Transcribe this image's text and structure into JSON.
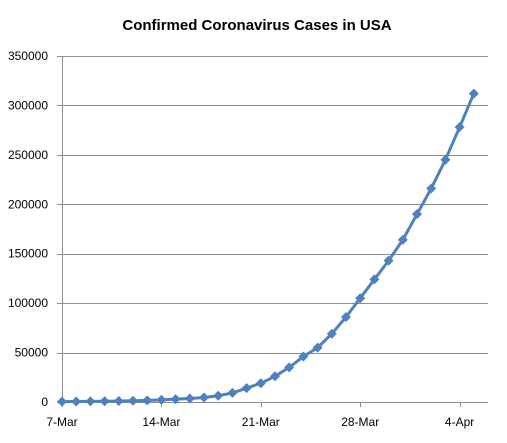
{
  "chart_data": {
    "type": "line",
    "title": "Confirmed Coronavirus Cases in USA",
    "xlabel": "",
    "ylabel": "",
    "ylim": [
      0,
      350000
    ],
    "y_ticks": [
      0,
      50000,
      100000,
      150000,
      200000,
      250000,
      300000,
      350000
    ],
    "y_tick_labels": [
      "0",
      "50000",
      "100000",
      "150000",
      "200000",
      "250000",
      "300000",
      "350000"
    ],
    "x_tick_labels": [
      "7-Mar",
      "14-Mar",
      "21-Mar",
      "28-Mar",
      "4-Apr"
    ],
    "x_tick_dates": [
      "2020-03-07",
      "2020-03-14",
      "2020-03-21",
      "2020-03-28",
      "2020-04-04"
    ],
    "xlim": [
      "2020-03-07",
      "2020-04-06"
    ],
    "grid": "horizontal",
    "legend": "none",
    "marker": "diamond",
    "color": "#4f81bd",
    "series": [
      {
        "x": [
          "2020-03-07",
          "2020-03-08",
          "2020-03-09",
          "2020-03-10",
          "2020-03-11",
          "2020-03-12",
          "2020-03-13",
          "2020-03-14",
          "2020-03-15",
          "2020-03-16",
          "2020-03-17",
          "2020-03-18",
          "2020-03-19",
          "2020-03-20",
          "2020-03-21",
          "2020-03-22",
          "2020-03-23",
          "2020-03-24",
          "2020-03-25",
          "2020-03-26",
          "2020-03-27",
          "2020-03-28",
          "2020-03-29",
          "2020-03-30",
          "2020-03-31",
          "2020-04-01",
          "2020-04-02",
          "2020-04-03",
          "2020-04-04",
          "2020-04-05"
        ],
        "values": [
          400,
          500,
          600,
          700,
          1000,
          1300,
          1600,
          2200,
          2900,
          3500,
          4600,
          6300,
          9200,
          14000,
          19000,
          26000,
          35000,
          46000,
          55000,
          69000,
          86000,
          105000,
          124000,
          143000,
          164000,
          190000,
          216000,
          245000,
          278000,
          312000
        ]
      }
    ]
  }
}
